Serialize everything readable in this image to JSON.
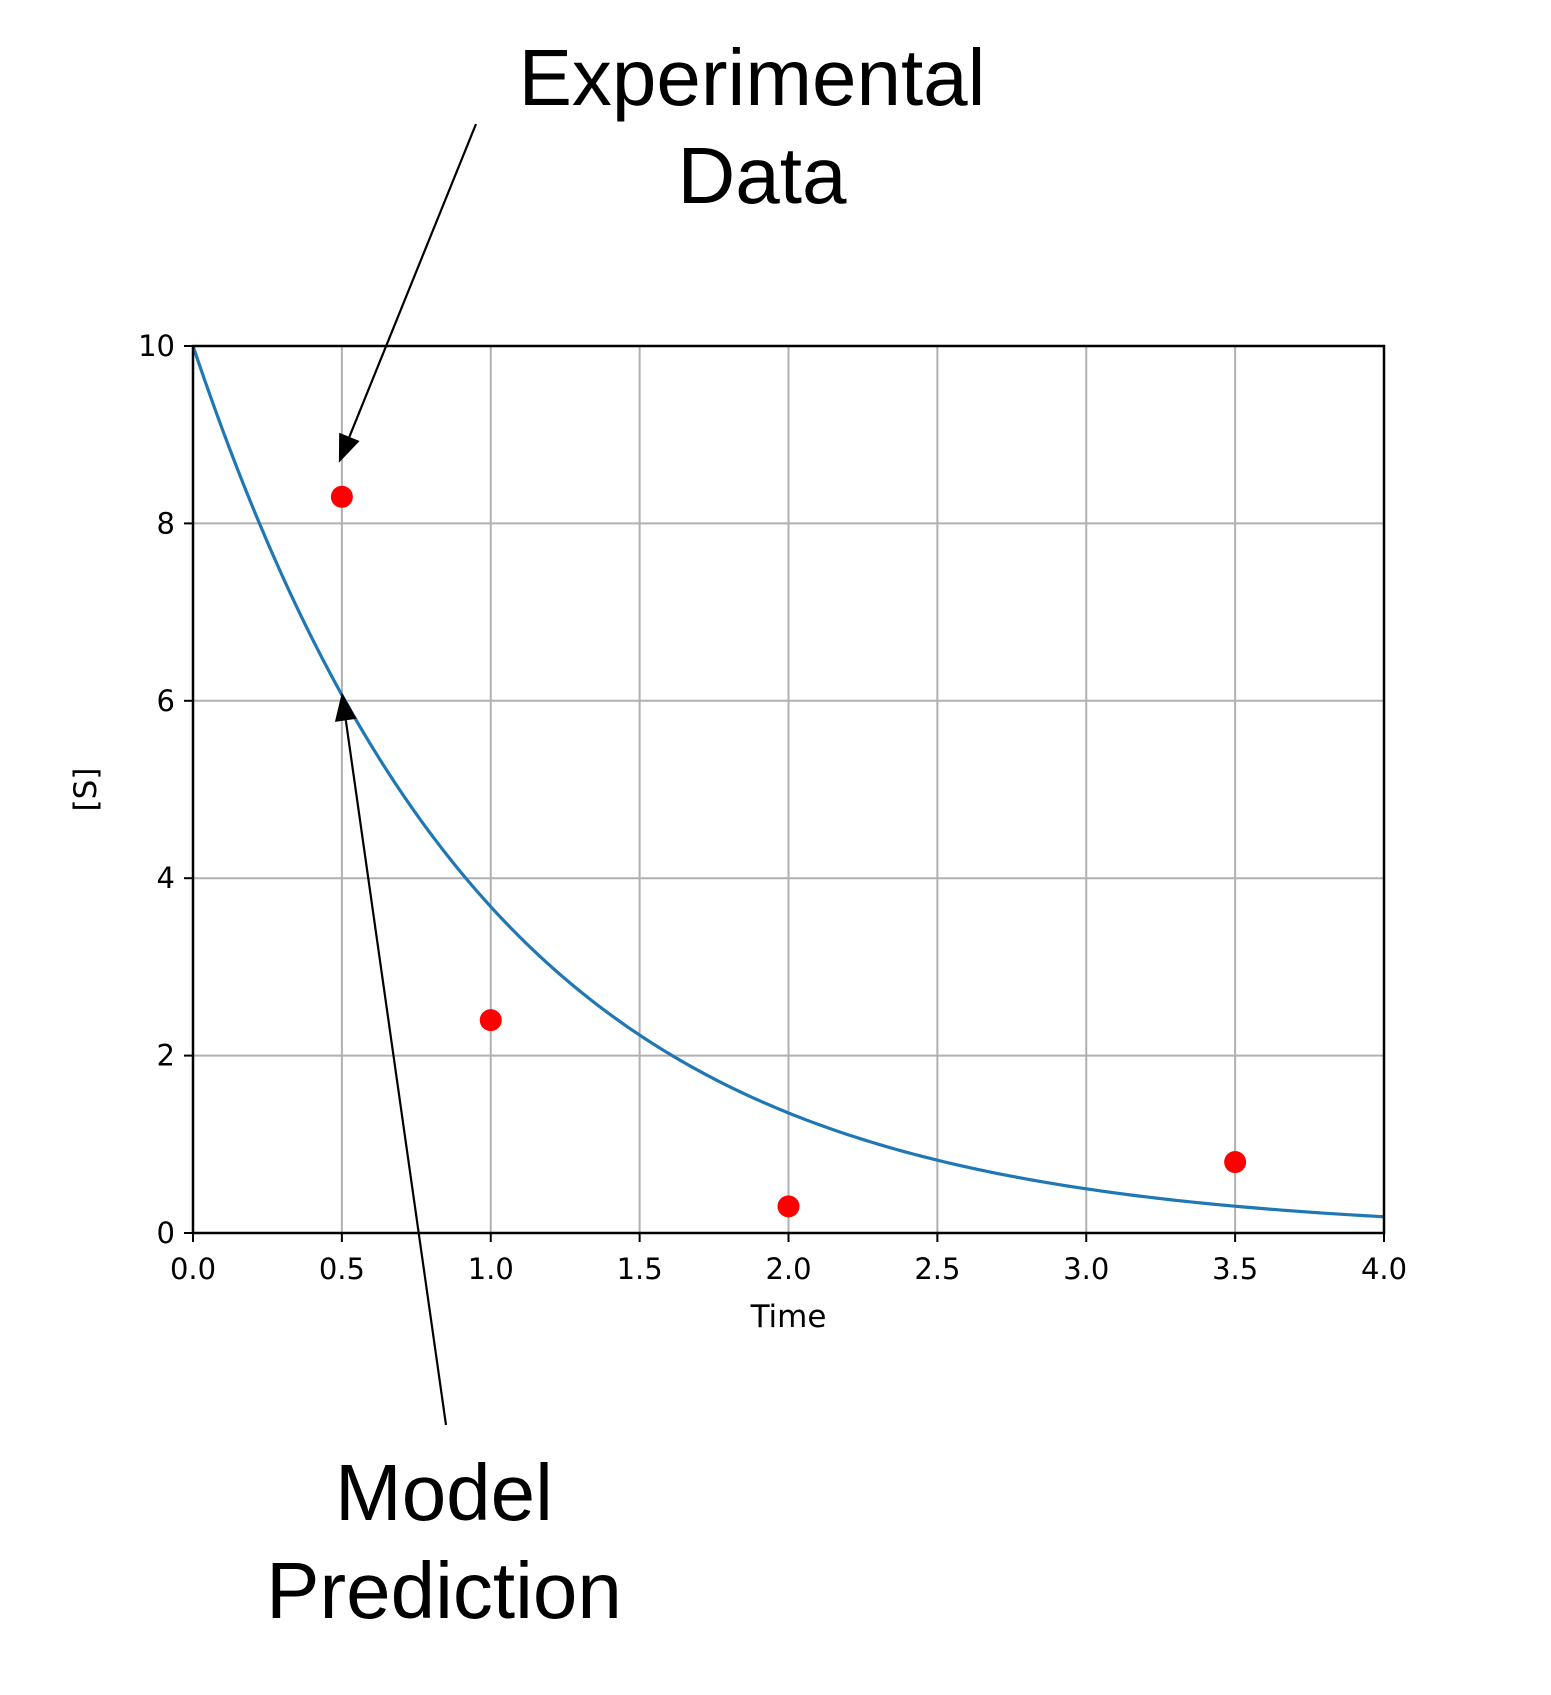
{
  "chart_data": {
    "type": "scatter",
    "title": "",
    "xlabel": "Time",
    "ylabel": "[S]",
    "xlim": [
      0.0,
      4.0
    ],
    "ylim": [
      0,
      10
    ],
    "x_ticks": [
      "0.0",
      "0.5",
      "1.0",
      "1.5",
      "2.0",
      "2.5",
      "3.0",
      "3.5",
      "4.0"
    ],
    "y_ticks": [
      "0",
      "2",
      "4",
      "6",
      "8",
      "10"
    ],
    "grid": true,
    "series": [
      {
        "kind": "line",
        "color": "#1f77b4",
        "model": "10 * exp(-1.0 * t)",
        "x": [
          0.0,
          0.25,
          0.5,
          0.75,
          1.0,
          1.25,
          1.5,
          1.75,
          2.0,
          2.25,
          2.5,
          2.75,
          3.0,
          3.25,
          3.5,
          3.75,
          4.0
        ],
        "y": [
          10.0,
          7.79,
          6.07,
          4.72,
          3.68,
          2.87,
          2.23,
          1.74,
          1.35,
          1.05,
          0.82,
          0.64,
          0.5,
          0.39,
          0.3,
          0.24,
          0.18
        ]
      },
      {
        "kind": "scatter",
        "color": "#ff0000",
        "x": [
          0.5,
          1.0,
          2.0,
          3.5
        ],
        "y": [
          8.3,
          2.4,
          0.3,
          0.8
        ]
      }
    ],
    "annotations": [
      {
        "lines": [
          "Experimental",
          "Data"
        ],
        "target": [
          0.5,
          8.3
        ]
      },
      {
        "lines": [
          "Model",
          "Prediction"
        ],
        "target": [
          0.5,
          6.07
        ]
      }
    ]
  }
}
